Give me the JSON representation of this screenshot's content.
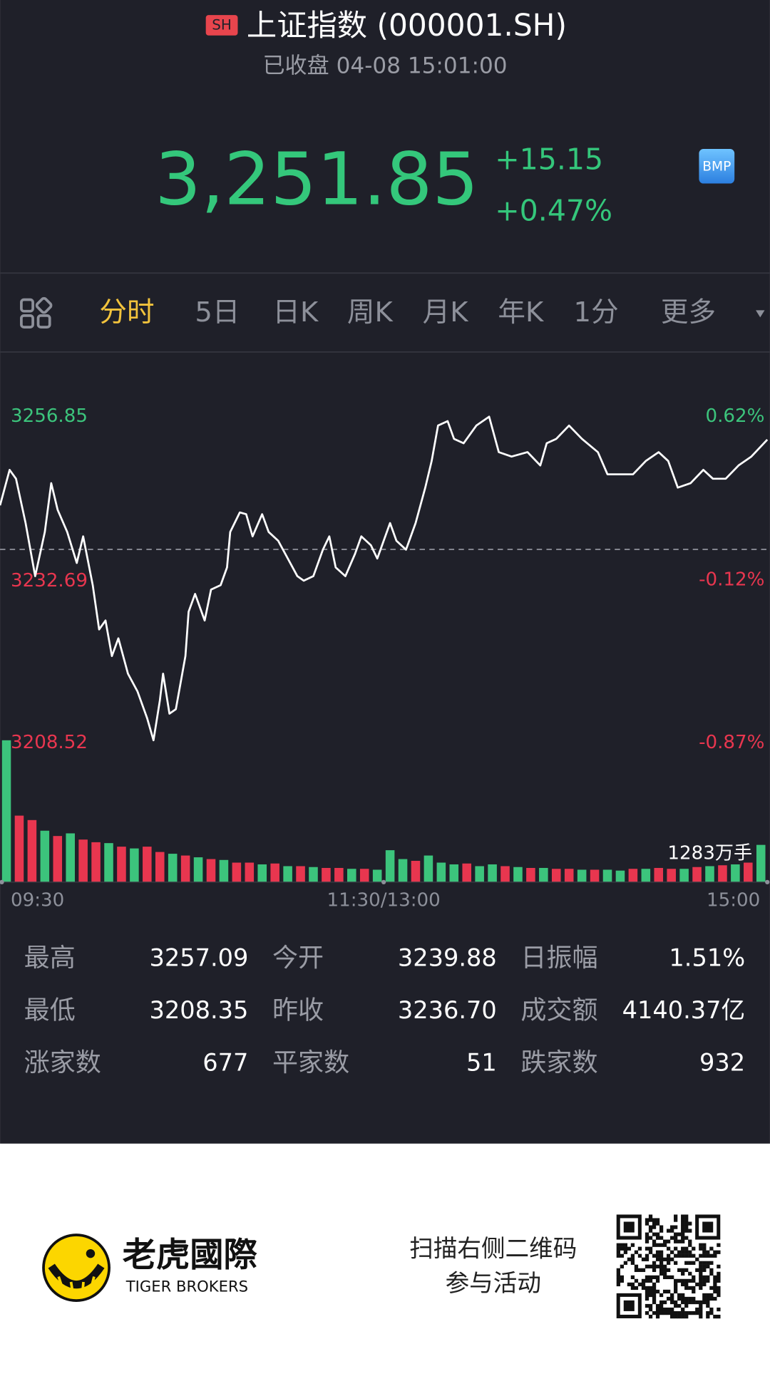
{
  "header": {
    "badge": "SH",
    "title": "上证指数 (000001.SH)",
    "status": "已收盘 04-08 15:01:00"
  },
  "quote": {
    "price": "3,251.85",
    "change": "+15.15",
    "change_pct": "+0.47%",
    "badge": "BMP"
  },
  "tabs": {
    "items": [
      "分时",
      "5日",
      "日K",
      "周K",
      "月K",
      "年K",
      "1分",
      "更多"
    ],
    "active": 0
  },
  "chart_data": {
    "type": "line",
    "color": "#ffffff",
    "up_color": "#3cc47c",
    "down_color": "#e8364f",
    "baseline": 3236.7,
    "xlim": [
      0,
      240
    ],
    "xticks": [
      {
        "value": 0,
        "label": "09:30"
      },
      {
        "value": 120,
        "label": "11:30/13:00"
      },
      {
        "value": 240,
        "label": "15:00"
      }
    ],
    "ylim": [
      3208.52,
      3256.85
    ],
    "yticks": [
      3256.85,
      3232.69,
      3208.52
    ],
    "y2lim": [
      -0.87,
      0.62
    ],
    "y2ticks": [
      {
        "value": 0.62,
        "label": "0.62%"
      },
      {
        "value": -0.12,
        "label": "-0.12%"
      },
      {
        "value": -0.87,
        "label": "-0.87%"
      }
    ],
    "x": [
      0,
      3,
      5,
      8,
      11,
      14,
      16,
      18,
      21,
      24,
      26,
      29,
      31,
      33,
      35,
      37,
      40,
      43,
      46,
      48,
      50,
      51,
      53,
      55,
      58,
      59,
      61,
      64,
      66,
      69,
      71,
      72,
      75,
      77,
      79,
      82,
      84,
      87,
      90,
      93,
      95,
      98,
      101,
      103,
      105,
      108,
      111,
      113,
      116,
      118,
      122,
      124,
      127,
      130,
      133,
      135,
      137,
      140,
      142,
      145,
      149,
      153,
      156,
      160,
      165,
      169,
      171,
      174,
      178,
      182,
      187,
      190,
      194,
      198,
      202,
      206,
      209,
      212,
      216,
      220,
      223,
      227,
      231,
      235,
      240
    ],
    "values": [
      3242.78,
      3247.67,
      3246.45,
      3240.33,
      3233.0,
      3239.11,
      3245.84,
      3242.17,
      3239.11,
      3234.83,
      3238.5,
      3231.77,
      3225.65,
      3226.88,
      3221.98,
      3224.43,
      3219.54,
      3217.09,
      3213.42,
      3210.36,
      3215.86,
      3219.54,
      3214.03,
      3214.64,
      3221.98,
      3228.1,
      3230.55,
      3226.88,
      3231.16,
      3231.77,
      3234.22,
      3239.11,
      3241.8,
      3241.56,
      3238.5,
      3241.56,
      3239.11,
      3237.89,
      3235.44,
      3233.0,
      3232.38,
      3233.0,
      3236.66,
      3238.5,
      3234.22,
      3233.0,
      3236.05,
      3238.5,
      3237.27,
      3235.44,
      3240.33,
      3237.89,
      3236.66,
      3240.33,
      3245.23,
      3248.9,
      3253.79,
      3254.4,
      3251.96,
      3251.34,
      3253.79,
      3255.01,
      3250.12,
      3249.51,
      3250.12,
      3248.29,
      3251.34,
      3251.96,
      3253.79,
      3251.96,
      3250.12,
      3247.06,
      3247.06,
      3247.06,
      3248.9,
      3250.12,
      3248.9,
      3245.23,
      3245.84,
      3247.67,
      3246.45,
      3246.45,
      3248.29,
      3249.51,
      3251.85
    ],
    "volume_label": "1283万手",
    "volume": {
      "ylim": [
        0,
        160
      ],
      "values": [
        160,
        75,
        70,
        58,
        52,
        55,
        48,
        45,
        44,
        40,
        38,
        40,
        34,
        32,
        30,
        28,
        26,
        25,
        22,
        22,
        20,
        21,
        18,
        18,
        17,
        16,
        16,
        15,
        15,
        14,
        36,
        26,
        24,
        30,
        22,
        20,
        21,
        18,
        20,
        18,
        17,
        16,
        16,
        15,
        15,
        14,
        14,
        14,
        13,
        15,
        15,
        16,
        15,
        15,
        17,
        18,
        19,
        20,
        22,
        42
      ],
      "up": [
        true,
        false,
        false,
        true,
        false,
        true,
        false,
        false,
        true,
        false,
        true,
        false,
        false,
        true,
        false,
        true,
        false,
        true,
        false,
        false,
        true,
        false,
        true,
        false,
        true,
        false,
        false,
        true,
        false,
        true,
        true,
        true,
        false,
        true,
        true,
        true,
        false,
        true,
        true,
        false,
        true,
        false,
        true,
        false,
        false,
        true,
        false,
        true,
        true,
        false,
        true,
        false,
        false,
        true,
        false,
        true,
        false,
        true,
        false,
        true
      ]
    }
  },
  "stats": [
    [
      {
        "label": "最高",
        "value": "3257.09"
      },
      {
        "label": "今开",
        "value": "3239.88"
      },
      {
        "label": "日振幅",
        "value": "1.51%"
      }
    ],
    [
      {
        "label": "最低",
        "value": "3208.35"
      },
      {
        "label": "昨收",
        "value": "3236.70"
      },
      {
        "label": "成交额",
        "value": "4140.37亿"
      }
    ],
    [
      {
        "label": "涨家数",
        "value": "677"
      },
      {
        "label": "平家数",
        "value": "51"
      },
      {
        "label": "跌家数",
        "value": "932"
      }
    ]
  ],
  "footer": {
    "brand": "老虎國際",
    "brand_en": "TIGER BROKERS",
    "promo_line1": "扫描右侧二维码",
    "promo_line2": "参与活动"
  }
}
